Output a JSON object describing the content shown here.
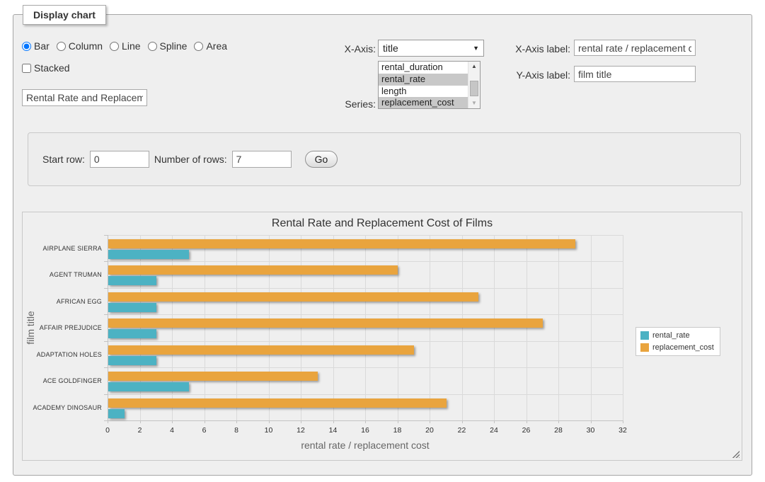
{
  "panel": {
    "legend": "Display chart"
  },
  "chart_type_options": [
    {
      "label": "Bar",
      "selected": true
    },
    {
      "label": "Column",
      "selected": false
    },
    {
      "label": "Line",
      "selected": false
    },
    {
      "label": "Spline",
      "selected": false
    },
    {
      "label": "Area",
      "selected": false
    }
  ],
  "stacked": {
    "label": "Stacked",
    "checked": false
  },
  "title_input": {
    "value": "Rental Rate and Replacement Cost of Films"
  },
  "x_axis": {
    "label": "X-Axis:",
    "selected": "title"
  },
  "series_select": {
    "label": "Series:",
    "options": [
      {
        "label": "rental_duration",
        "selected": false
      },
      {
        "label": "rental_rate",
        "selected": true
      },
      {
        "label": "length",
        "selected": false
      },
      {
        "label": "replacement_cost",
        "selected": true
      }
    ]
  },
  "x_axis_label": {
    "label": "X-Axis label:",
    "value": "rental rate / replacement cost"
  },
  "y_axis_label": {
    "label": "Y-Axis label:",
    "value": "film title"
  },
  "row_controls": {
    "start_row_label": "Start row:",
    "start_row_value": "0",
    "num_rows_label": "Number of rows:",
    "num_rows_value": "7",
    "go_label": "Go"
  },
  "chart_data": {
    "type": "bar",
    "title": "Rental Rate and Replacement Cost of Films",
    "categories": [
      "AIRPLANE SIERRA",
      "AGENT TRUMAN",
      "AFRICAN EGG",
      "AFFAIR PREJUDICE",
      "ADAPTATION HOLES",
      "ACE GOLDFINGER",
      "ACADEMY DINOSAUR"
    ],
    "series": [
      {
        "name": "rental_rate",
        "color": "#4CB2C3",
        "values": [
          4.99,
          2.99,
          2.99,
          2.99,
          2.99,
          4.99,
          0.99
        ]
      },
      {
        "name": "replacement_cost",
        "color": "#E9A43E",
        "values": [
          28.99,
          17.99,
          22.99,
          26.99,
          18.99,
          12.99,
          20.99
        ]
      }
    ],
    "xlabel": "rental rate / replacement cost",
    "ylabel": "film title",
    "xlim": [
      0,
      32
    ],
    "xtick_step": 2,
    "grid": true,
    "legend_position": "right"
  }
}
